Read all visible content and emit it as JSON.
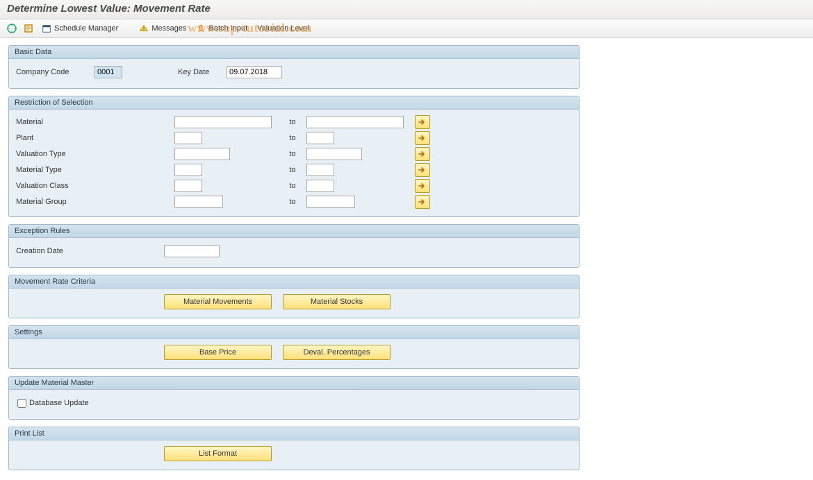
{
  "colors": {
    "group_border": "#9db8c9",
    "group_bg": "#e9f0f5",
    "group_header_top": "#d5e4ee",
    "group_header_bottom": "#c2d7e5",
    "yellow_btn_top": "#fff6c6",
    "yellow_btn_bottom": "#ffe27a",
    "yellow_btn_border": "#b59a2e",
    "input_border": "#a8a8a8",
    "selected_input_bg": "#cfe7f5",
    "watermark": "rgba(230,140,40,0.55)"
  },
  "title": "Determine Lowest Value: Movement Rate",
  "toolbar": {
    "schedule_manager": "Schedule Manager",
    "messages": "Messages",
    "batch_input": "Batch Input",
    "valuation_level": "Valuation Level"
  },
  "watermark_text": "www.sap-tutorial.com",
  "groups": {
    "basic_data": {
      "title": "Basic Data",
      "company_code_label": "Company Code",
      "company_code_value": "0001",
      "key_date_label": "Key Date",
      "key_date_value": "09.07.2018"
    },
    "restriction": {
      "title": "Restriction of Selection",
      "to_label": "to",
      "rows": [
        {
          "label": "Material",
          "from": "",
          "to": "",
          "w_from": "w140",
          "w_to": "w140"
        },
        {
          "label": "Plant",
          "from": "",
          "to": "",
          "w_from": "w40",
          "w_to": "w40"
        },
        {
          "label": "Valuation Type",
          "from": "",
          "to": "",
          "w_from": "w80",
          "w_to": "w80"
        },
        {
          "label": "Material Type",
          "from": "",
          "to": "",
          "w_from": "w40",
          "w_to": "w40"
        },
        {
          "label": "Valuation Class",
          "from": "",
          "to": "",
          "w_from": "w40",
          "w_to": "w40"
        },
        {
          "label": "Material Group",
          "from": "",
          "to": "",
          "w_from": "w70",
          "w_to": "w70"
        }
      ]
    },
    "exception": {
      "title": "Exception Rules",
      "creation_date_label": "Creation Date",
      "creation_date_value": ""
    },
    "movement": {
      "title": "Movement Rate Criteria",
      "btn1": "Material Movements",
      "btn2": "Material Stocks"
    },
    "settings": {
      "title": "Settings",
      "btn1": "Base Price",
      "btn2": "Deval. Percentages"
    },
    "update": {
      "title": "Update Material Master",
      "checkbox_label": "Database Update",
      "checked": false
    },
    "print": {
      "title": "Print List",
      "btn1": "List Format"
    }
  }
}
